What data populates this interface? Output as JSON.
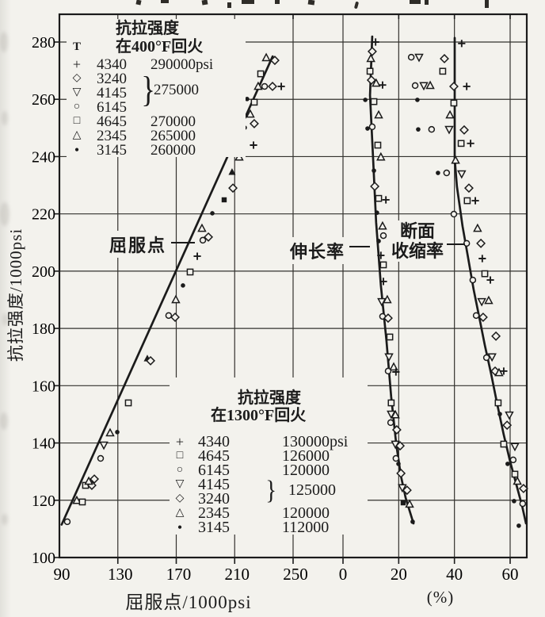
{
  "page": {
    "paper_color": "#f3f2ed",
    "ink_color": "#1b1b1b"
  },
  "chart_data": {
    "type": "scatter",
    "title": "",
    "y_axis": {
      "label": "抗拉强度/1000psi",
      "min": 100,
      "max": 290,
      "ticks": [
        100,
        120,
        140,
        160,
        180,
        200,
        220,
        240,
        260,
        280
      ]
    },
    "x_axis_yield": {
      "label": "屈服点/1000psi",
      "min": 90,
      "max": 250,
      "ticks": [
        90,
        130,
        170,
        210,
        250
      ]
    },
    "x_axis_pct": {
      "label": "(%)",
      "min": 0,
      "max": 66,
      "ticks": [
        0,
        20,
        40,
        60
      ]
    },
    "grid": "on",
    "legend_400F": {
      "title_line1": "抗拉强度",
      "title_line2": "在400°F回火",
      "extra_symbol": "T",
      "entries": [
        {
          "symbol": "+",
          "alloy": "4340",
          "value": "290000psi"
        },
        {
          "symbol": "◇",
          "alloy": "3240",
          "value": ""
        },
        {
          "symbol": "▽",
          "alloy": "4145",
          "value": ""
        },
        {
          "symbol": "○",
          "alloy": "6145",
          "value": ""
        },
        {
          "symbol": "□",
          "alloy": "4645",
          "value": "270000"
        },
        {
          "symbol": "△",
          "alloy": "2345",
          "value": "265000"
        },
        {
          "symbol": "•",
          "alloy": "3145",
          "value": "260000"
        }
      ],
      "brace": {
        "glyph": "}",
        "grouped_alloys": [
          "3240",
          "4145",
          "6145"
        ],
        "value": "275000"
      }
    },
    "legend_1300F": {
      "title_line1": "抗拉强度",
      "title_line2": "在1300°F回火",
      "entries": [
        {
          "symbol": "+",
          "alloy": "4340",
          "value": "130000psi"
        },
        {
          "symbol": "□",
          "alloy": "4645",
          "value": "126000"
        },
        {
          "symbol": "○",
          "alloy": "6145",
          "value": "120000"
        },
        {
          "symbol": "▽",
          "alloy": "4145",
          "value": ""
        },
        {
          "symbol": "◇",
          "alloy": "3240",
          "value": ""
        },
        {
          "symbol": "△",
          "alloy": "2345",
          "value": "120000"
        },
        {
          "symbol": "•",
          "alloy": "3145",
          "value": "112000"
        }
      ],
      "brace": {
        "glyph": "}",
        "grouped_alloys": [
          "4145",
          "3240"
        ],
        "value": "125000"
      }
    },
    "annotations": [
      {
        "text": "屈服点"
      },
      {
        "text": "伸长率"
      },
      {
        "text": "断面",
        "text2": "收缩率"
      }
    ],
    "marker_key": {
      "p": "plus",
      "s": "open-square",
      "c": "open-circle",
      "d": "open-diamond",
      "t": "open-triangle-up",
      "v": "open-triangle-down",
      "f": "filled-dot",
      "fs": "filled-square",
      "ft": "filled-triangle"
    },
    "series": [
      {
        "name": "屈服点",
        "axis": "yield",
        "trend": [
          [
            91.5,
            111.5
          ],
          [
            236,
            275
          ]
        ],
        "points": [
          [
            95.4,
            112.5,
            "c"
          ],
          [
            101.9,
            119.9,
            "t"
          ],
          [
            105.7,
            119.4,
            "s"
          ],
          [
            107.9,
            125.2,
            "s"
          ],
          [
            112.2,
            125.2,
            "d"
          ],
          [
            113.9,
            127.4,
            "d"
          ],
          [
            110.1,
            126.6,
            "t"
          ],
          [
            118.2,
            134.6,
            "c"
          ],
          [
            120.4,
            139.3,
            "v"
          ],
          [
            124.7,
            143.5,
            "t"
          ],
          [
            129.6,
            143.8,
            "f"
          ],
          [
            137.2,
            154.0,
            "s"
          ],
          [
            150.2,
            169.5,
            "ft"
          ],
          [
            152.4,
            168.7,
            "d"
          ],
          [
            164.8,
            184.5,
            "c"
          ],
          [
            169.2,
            183.9,
            "d"
          ],
          [
            169.7,
            190.0,
            "t"
          ],
          [
            174.6,
            195.0,
            "f"
          ],
          [
            179.5,
            199.7,
            "s"
          ],
          [
            184.4,
            205.2,
            "p"
          ],
          [
            188.2,
            210.8,
            "c"
          ],
          [
            192.0,
            211.9,
            "d"
          ],
          [
            187.6,
            214.9,
            "t"
          ],
          [
            194.7,
            220.2,
            "f"
          ],
          [
            202.8,
            224.9,
            "fs"
          ],
          [
            208.2,
            234.6,
            "ft"
          ],
          [
            208.8,
            229.0,
            "d"
          ],
          [
            213.1,
            239.8,
            "t"
          ],
          [
            214.7,
            244.6,
            "s"
          ],
          [
            222.9,
            244.0,
            "p"
          ],
          [
            216.9,
            250.1,
            "f"
          ],
          [
            220.7,
            254.8,
            "t"
          ],
          [
            223.4,
            251.5,
            "d"
          ],
          [
            218.5,
            260.1,
            "f"
          ],
          [
            223.4,
            259.0,
            "s"
          ],
          [
            226.1,
            264.5,
            "t"
          ],
          [
            230.5,
            264.5,
            "c"
          ],
          [
            235.9,
            264.5,
            "d"
          ],
          [
            241.9,
            264.5,
            "p"
          ],
          [
            227.8,
            268.9,
            "s"
          ],
          [
            231.6,
            274.5,
            "t"
          ],
          [
            237.5,
            273.6,
            "d"
          ]
        ]
      },
      {
        "name": "伸长率",
        "axis": "pct",
        "trend": [
          [
            10.5,
            281.9
          ],
          [
            9.7,
            261.4
          ],
          [
            10.8,
            239.3
          ],
          [
            11.9,
            217.1
          ],
          [
            13.6,
            195.0
          ],
          [
            15.6,
            175.6
          ],
          [
            17.3,
            156.2
          ],
          [
            19.1,
            139.6
          ],
          [
            20.8,
            128.5
          ],
          [
            22.5,
            120.8
          ],
          [
            25.3,
            111.9
          ]
        ],
        "points": [
          [
            11.7,
            280.0,
            "p"
          ],
          [
            10.5,
            276.7,
            "d"
          ],
          [
            10.0,
            274.2,
            "t"
          ],
          [
            9.7,
            269.8,
            "s"
          ],
          [
            10.2,
            266.7,
            "d"
          ],
          [
            11.9,
            265.6,
            "t"
          ],
          [
            14.2,
            265.0,
            "p"
          ],
          [
            11.1,
            259.2,
            "s"
          ],
          [
            8.0,
            259.8,
            "f"
          ],
          [
            12.8,
            254.5,
            "t"
          ],
          [
            10.5,
            250.4,
            "c"
          ],
          [
            8.8,
            249.8,
            "f"
          ],
          [
            12.5,
            244.0,
            "s"
          ],
          [
            13.6,
            239.8,
            "t"
          ],
          [
            11.1,
            235.1,
            "f"
          ],
          [
            11.4,
            229.6,
            "d"
          ],
          [
            12.8,
            225.4,
            "s"
          ],
          [
            15.4,
            224.9,
            "p"
          ],
          [
            12.2,
            220.4,
            "f"
          ],
          [
            14.2,
            215.7,
            "t"
          ],
          [
            14.5,
            212.4,
            "c"
          ],
          [
            12.8,
            210.5,
            "f"
          ],
          [
            13.6,
            205.5,
            "p"
          ],
          [
            14.5,
            202.2,
            "s"
          ],
          [
            14.5,
            196.4,
            "p"
          ],
          [
            13.9,
            189.4,
            "v"
          ],
          [
            15.9,
            190.0,
            "t"
          ],
          [
            14.2,
            184.2,
            "c"
          ],
          [
            16.2,
            183.6,
            "d"
          ],
          [
            16.8,
            177.0,
            "s"
          ],
          [
            16.5,
            170.1,
            "v"
          ],
          [
            18.2,
            166.5,
            "t"
          ],
          [
            16.2,
            165.1,
            "c"
          ],
          [
            19.0,
            164.8,
            "p"
          ],
          [
            17.3,
            154.0,
            "s"
          ],
          [
            17.3,
            150.1,
            "v"
          ],
          [
            18.8,
            149.8,
            "t"
          ],
          [
            17.1,
            147.1,
            "c"
          ],
          [
            19.3,
            144.6,
            "d"
          ],
          [
            18.8,
            139.6,
            "v"
          ],
          [
            20.5,
            139.0,
            "d"
          ],
          [
            19.0,
            134.6,
            "c"
          ],
          [
            19.9,
            132.7,
            "f"
          ],
          [
            20.8,
            129.4,
            "d"
          ],
          [
            21.3,
            124.4,
            "v"
          ],
          [
            23.0,
            123.5,
            "d"
          ],
          [
            21.6,
            119.1,
            "fs"
          ],
          [
            23.9,
            118.6,
            "t"
          ],
          [
            25.0,
            112.5,
            "f"
          ]
        ]
      },
      {
        "name": "断面收缩率",
        "axis": "pct",
        "trend": [
          [
            40.1,
            281.4
          ],
          [
            40.1,
            239.3
          ],
          [
            40.9,
            229.6
          ],
          [
            42.9,
            215.7
          ],
          [
            44.9,
            204.7
          ],
          [
            46.9,
            193.6
          ],
          [
            48.9,
            183.9
          ],
          [
            50.9,
            174.2
          ],
          [
            53.2,
            164.0
          ],
          [
            55.4,
            153.4
          ],
          [
            57.7,
            142.9
          ],
          [
            60.0,
            133.5
          ],
          [
            62.3,
            125.2
          ],
          [
            64.3,
            118.0
          ],
          [
            65.7,
            111.9
          ]
        ],
        "points": [
          [
            42.6,
            279.5,
            "p"
          ],
          [
            24.5,
            274.7,
            "c"
          ],
          [
            27.3,
            274.7,
            "v"
          ],
          [
            36.4,
            274.2,
            "d"
          ],
          [
            35.8,
            269.8,
            "s"
          ],
          [
            25.9,
            264.8,
            "c"
          ],
          [
            29.0,
            264.8,
            "v"
          ],
          [
            31.3,
            264.8,
            "t"
          ],
          [
            39.8,
            264.5,
            "d"
          ],
          [
            44.4,
            264.5,
            "p"
          ],
          [
            26.7,
            259.8,
            "f"
          ],
          [
            39.8,
            258.7,
            "s"
          ],
          [
            38.4,
            254.5,
            "t"
          ],
          [
            27.0,
            249.5,
            "f"
          ],
          [
            31.8,
            249.5,
            "c"
          ],
          [
            38.1,
            249.5,
            "v"
          ],
          [
            43.5,
            249.3,
            "d"
          ],
          [
            42.4,
            244.6,
            "s"
          ],
          [
            45.8,
            244.6,
            "p"
          ],
          [
            40.4,
            238.7,
            "t"
          ],
          [
            34.1,
            234.3,
            "f"
          ],
          [
            37.2,
            234.3,
            "c"
          ],
          [
            42.6,
            234.0,
            "v"
          ],
          [
            45.2,
            229.0,
            "d"
          ],
          [
            44.6,
            224.6,
            "s"
          ],
          [
            47.5,
            224.6,
            "p"
          ],
          [
            39.8,
            219.9,
            "c"
          ],
          [
            48.3,
            214.9,
            "t"
          ],
          [
            44.4,
            209.7,
            "c"
          ],
          [
            49.5,
            209.7,
            "d"
          ],
          [
            50.0,
            204.4,
            "p"
          ],
          [
            50.9,
            199.1,
            "s"
          ],
          [
            46.6,
            196.9,
            "c"
          ],
          [
            52.9,
            196.9,
            "p"
          ],
          [
            49.8,
            189.4,
            "v"
          ],
          [
            52.3,
            189.7,
            "t"
          ],
          [
            47.8,
            184.5,
            "c"
          ],
          [
            50.3,
            183.9,
            "d"
          ],
          [
            54.9,
            177.3,
            "d"
          ],
          [
            51.5,
            169.8,
            "c"
          ],
          [
            53.5,
            170.1,
            "v"
          ],
          [
            54.6,
            165.1,
            "d"
          ],
          [
            56.0,
            164.5,
            "t"
          ],
          [
            57.7,
            165.1,
            "p"
          ],
          [
            55.7,
            154.0,
            "s"
          ],
          [
            56.3,
            150.1,
            "f"
          ],
          [
            59.7,
            149.8,
            "v"
          ],
          [
            58.9,
            146.2,
            "d"
          ],
          [
            57.7,
            139.6,
            "s"
          ],
          [
            61.7,
            138.8,
            "v"
          ],
          [
            61.1,
            134.1,
            "c"
          ],
          [
            59.1,
            132.7,
            "f"
          ],
          [
            61.7,
            129.1,
            "s"
          ],
          [
            62.6,
            126.6,
            "t"
          ],
          [
            64.8,
            124.1,
            "d"
          ],
          [
            61.4,
            119.7,
            "f"
          ],
          [
            64.5,
            118.8,
            "c"
          ],
          [
            63.1,
            111.1,
            "f"
          ]
        ]
      }
    ]
  }
}
